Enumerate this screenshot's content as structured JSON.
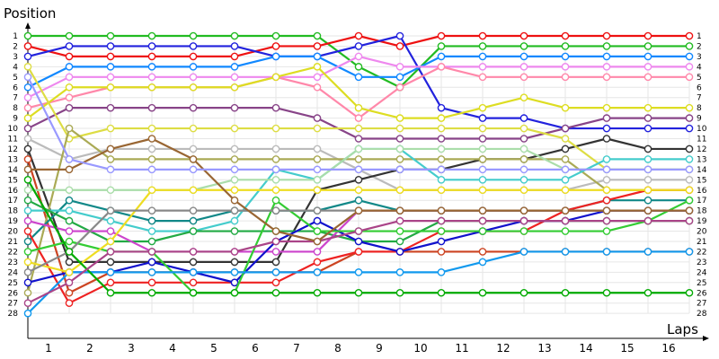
{
  "chart_data": {
    "type": "line",
    "ylabel": "Position",
    "xlabel": "Laps",
    "x": [
      0,
      1,
      2,
      3,
      4,
      5,
      6,
      7,
      8,
      9,
      10,
      11,
      12,
      13,
      14,
      15,
      16
    ],
    "x_tick_labels": [
      "1",
      "2",
      "3",
      "4",
      "5",
      "6",
      "7",
      "8",
      "9",
      "10",
      "11",
      "12",
      "13",
      "14",
      "15",
      "16"
    ],
    "positions": [
      1,
      2,
      3,
      4,
      5,
      6,
      7,
      8,
      9,
      10,
      11,
      12,
      13,
      14,
      15,
      16,
      17,
      18,
      19,
      20,
      21,
      22,
      23,
      24,
      25,
      26,
      27,
      28
    ],
    "grid": true,
    "series": [
      {
        "color": "#22bb22",
        "values": [
          1,
          1,
          1,
          1,
          1,
          1,
          1,
          1,
          4,
          6,
          2,
          2,
          2,
          2,
          2,
          2,
          2
        ]
      },
      {
        "color": "#ee1111",
        "values": [
          2,
          3,
          3,
          3,
          3,
          3,
          2,
          2,
          1,
          2,
          1,
          1,
          1,
          1,
          1,
          1,
          1
        ]
      },
      {
        "color": "#2222dd",
        "values": [
          3,
          2,
          2,
          2,
          2,
          2,
          3,
          3,
          2,
          1,
          8,
          9,
          9,
          10,
          10,
          10,
          10
        ]
      },
      {
        "color": "#1188ff",
        "values": [
          6,
          4,
          4,
          4,
          4,
          4,
          3,
          3,
          5,
          5,
          3,
          3,
          3,
          3,
          3,
          3,
          3
        ]
      },
      {
        "color": "#ee88ee",
        "values": [
          7,
          5,
          5,
          5,
          5,
          5,
          5,
          5,
          3,
          4,
          4,
          4,
          4,
          4,
          4,
          4,
          4
        ]
      },
      {
        "color": "#ff88aa",
        "values": [
          8,
          7,
          6,
          6,
          6,
          6,
          5,
          6,
          9,
          6,
          4,
          5,
          5,
          5,
          5,
          5,
          5
        ]
      },
      {
        "color": "#dddd22",
        "values": [
          9,
          6,
          6,
          6,
          6,
          6,
          5,
          4,
          8,
          9,
          9,
          8,
          7,
          8,
          8,
          8,
          8
        ]
      },
      {
        "color": "#884488",
        "values": [
          10,
          8,
          8,
          8,
          8,
          8,
          8,
          9,
          11,
          11,
          11,
          11,
          11,
          10,
          9,
          9,
          9
        ]
      },
      {
        "color": "#bbbbbb",
        "values": [
          11,
          13,
          12,
          12,
          12,
          12,
          12,
          12,
          14,
          16,
          16,
          16,
          16,
          16,
          15,
          15,
          15
        ]
      },
      {
        "color": "#333333",
        "values": [
          12,
          23,
          23,
          23,
          23,
          23,
          23,
          16,
          15,
          14,
          14,
          13,
          13,
          12,
          11,
          12,
          12
        ]
      },
      {
        "color": "#cc4422",
        "values": [
          13,
          26,
          24,
          24,
          24,
          24,
          24,
          24,
          22,
          22,
          22,
          22,
          22,
          22,
          22,
          22,
          22
        ]
      },
      {
        "color": "#dddd44",
        "values": [
          4,
          11,
          10,
          10,
          10,
          10,
          10,
          10,
          10,
          10,
          10,
          10,
          10,
          11,
          14,
          14,
          14
        ]
      },
      {
        "color": "#aaaa55",
        "values": [
          26,
          10,
          13,
          13,
          13,
          13,
          13,
          13,
          13,
          13,
          13,
          13,
          13,
          13,
          16,
          16,
          16
        ]
      },
      {
        "color": "#118888",
        "values": [
          21,
          17,
          18,
          19,
          19,
          18,
          18,
          18,
          17,
          18,
          18,
          18,
          18,
          18,
          17,
          17,
          17
        ]
      },
      {
        "color": "#44cccc",
        "values": [
          18,
          18,
          19,
          20,
          20,
          19,
          14,
          15,
          12,
          12,
          15,
          15,
          15,
          15,
          13,
          13,
          13
        ]
      },
      {
        "color": "#22aa44",
        "values": [
          17,
          19,
          21,
          21,
          20,
          20,
          20,
          20,
          21,
          21,
          19,
          19,
          19,
          19,
          19,
          19,
          19
        ]
      },
      {
        "color": "#aaddaa",
        "values": [
          16,
          16,
          16,
          16,
          16,
          15,
          15,
          15,
          12,
          12,
          12,
          12,
          12,
          14,
          14,
          14,
          14
        ]
      },
      {
        "color": "#cc44cc",
        "values": [
          19,
          20,
          20,
          22,
          22,
          22,
          22,
          22,
          18,
          18,
          18,
          18,
          18,
          18,
          18,
          18,
          18
        ]
      },
      {
        "color": "#ee2222",
        "values": [
          20,
          27,
          25,
          25,
          25,
          25,
          25,
          23,
          22,
          22,
          20,
          20,
          20,
          18,
          17,
          16,
          16
        ]
      },
      {
        "color": "#1111cc",
        "values": [
          25,
          24,
          24,
          23,
          24,
          25,
          21,
          19,
          21,
          22,
          21,
          20,
          19,
          19,
          18,
          18,
          18
        ]
      },
      {
        "color": "#33cc33",
        "values": [
          22,
          21,
          22,
          22,
          26,
          26,
          17,
          20,
          20,
          20,
          20,
          20,
          20,
          20,
          20,
          19,
          17
        ]
      },
      {
        "color": "#1199ee",
        "values": [
          28,
          24,
          24,
          24,
          24,
          24,
          24,
          24,
          24,
          24,
          24,
          23,
          22,
          22,
          22,
          22,
          22
        ]
      },
      {
        "color": "#eedd22",
        "values": [
          23,
          24,
          21,
          16,
          16,
          16,
          16,
          16,
          16,
          16,
          16,
          16,
          16,
          16,
          16,
          16,
          16
        ]
      },
      {
        "color": "#888888",
        "values": [
          24,
          22,
          18,
          18,
          18,
          18,
          18,
          18,
          18,
          18,
          18,
          18,
          18,
          18,
          18,
          18,
          18
        ]
      },
      {
        "color": "#00aa00",
        "values": [
          15,
          22,
          26,
          26,
          26,
          26,
          26,
          26,
          26,
          26,
          26,
          26,
          26,
          26,
          26,
          26,
          26
        ]
      },
      {
        "color": "#aa4488",
        "values": [
          27,
          25,
          22,
          22,
          22,
          22,
          21,
          21,
          20,
          19,
          19,
          19,
          19,
          19,
          19,
          19,
          19
        ]
      },
      {
        "color": "#996633",
        "values": [
          14,
          14,
          12,
          11,
          13,
          17,
          20,
          21,
          18,
          18,
          18,
          18,
          18,
          18,
          18,
          18,
          18
        ]
      },
      {
        "color": "#9999ff",
        "values": [
          5,
          13,
          14,
          14,
          14,
          14,
          14,
          14,
          14,
          14,
          14,
          14,
          14,
          14,
          14,
          14,
          14
        ]
      }
    ]
  }
}
